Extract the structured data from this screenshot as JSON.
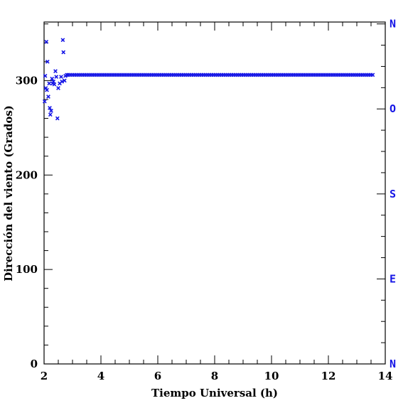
{
  "chart_data": {
    "type": "scatter",
    "xlabel": "Tiempo Universal (h)",
    "ylabel": "Dirección del viento (Grados)",
    "xlim": [
      2,
      14
    ],
    "ylim": [
      0,
      362
    ],
    "x_ticks": [
      2,
      4,
      6,
      8,
      10,
      12,
      14
    ],
    "y_ticks": [
      0,
      100,
      200,
      300
    ],
    "right_axis_labels": [
      {
        "label": "N",
        "value": 0
      },
      {
        "label": "E",
        "value": 90
      },
      {
        "label": "S",
        "value": 180
      },
      {
        "label": "O",
        "value": 270
      },
      {
        "label": "N",
        "value": 360
      }
    ],
    "marker": "x",
    "series_color": "#1414e6",
    "axis_color": "#000000",
    "grid": false,
    "scattered_points": [
      [
        2.02,
        278
      ],
      [
        2.04,
        305
      ],
      [
        2.06,
        292
      ],
      [
        2.08,
        341
      ],
      [
        2.1,
        290
      ],
      [
        2.12,
        320
      ],
      [
        2.15,
        283
      ],
      [
        2.18,
        297
      ],
      [
        2.2,
        271
      ],
      [
        2.22,
        264
      ],
      [
        2.25,
        268
      ],
      [
        2.28,
        302
      ],
      [
        2.3,
        297
      ],
      [
        2.33,
        299
      ],
      [
        2.36,
        296
      ],
      [
        2.4,
        310
      ],
      [
        2.43,
        304
      ],
      [
        2.47,
        260
      ],
      [
        2.5,
        292
      ],
      [
        2.55,
        297
      ],
      [
        2.6,
        304
      ],
      [
        2.63,
        299
      ],
      [
        2.66,
        343
      ],
      [
        2.68,
        330
      ],
      [
        2.72,
        300
      ],
      [
        2.75,
        305
      ],
      [
        2.8,
        306
      ]
    ],
    "steady_segment": {
      "x_start": 2.85,
      "x_end": 13.6,
      "x_step": 0.07,
      "value": 306
    }
  }
}
